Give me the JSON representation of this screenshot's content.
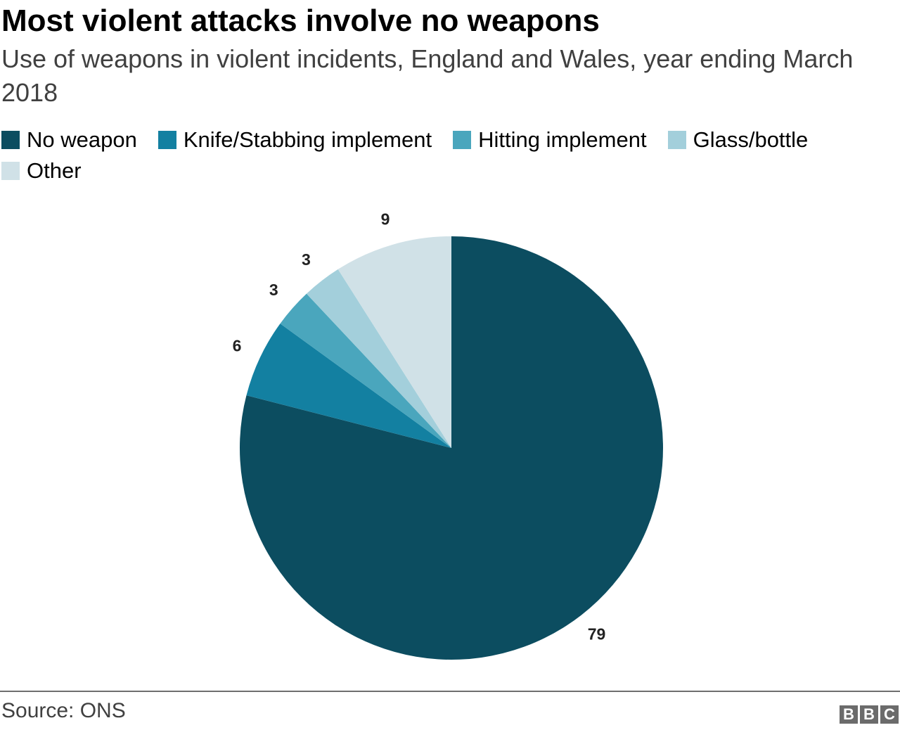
{
  "header": {
    "title": "Most violent attacks involve no weapons",
    "subtitle": "Use of weapons in violent incidents, England and Wales, year ending March 2018"
  },
  "chart_data": {
    "type": "pie",
    "title": "Most violent attacks involve no weapons",
    "subtitle": "Use of weapons in violent incidents, England and Wales, year ending March 2018",
    "categories": [
      "No weapon",
      "Knife/Stabbing implement",
      "Hitting implement",
      "Glass/bottle",
      "Other"
    ],
    "values": [
      79,
      6,
      3,
      3,
      9
    ],
    "colors": [
      "#0c4d60",
      "#1380a1",
      "#4aa6bd",
      "#a3cfdb",
      "#d0e1e7"
    ],
    "legend_position": "top-left",
    "start": "12 o'clock",
    "direction": "clockwise"
  },
  "footer": {
    "source": "Source: ONS",
    "logo_letters": [
      "B",
      "B",
      "C"
    ]
  }
}
